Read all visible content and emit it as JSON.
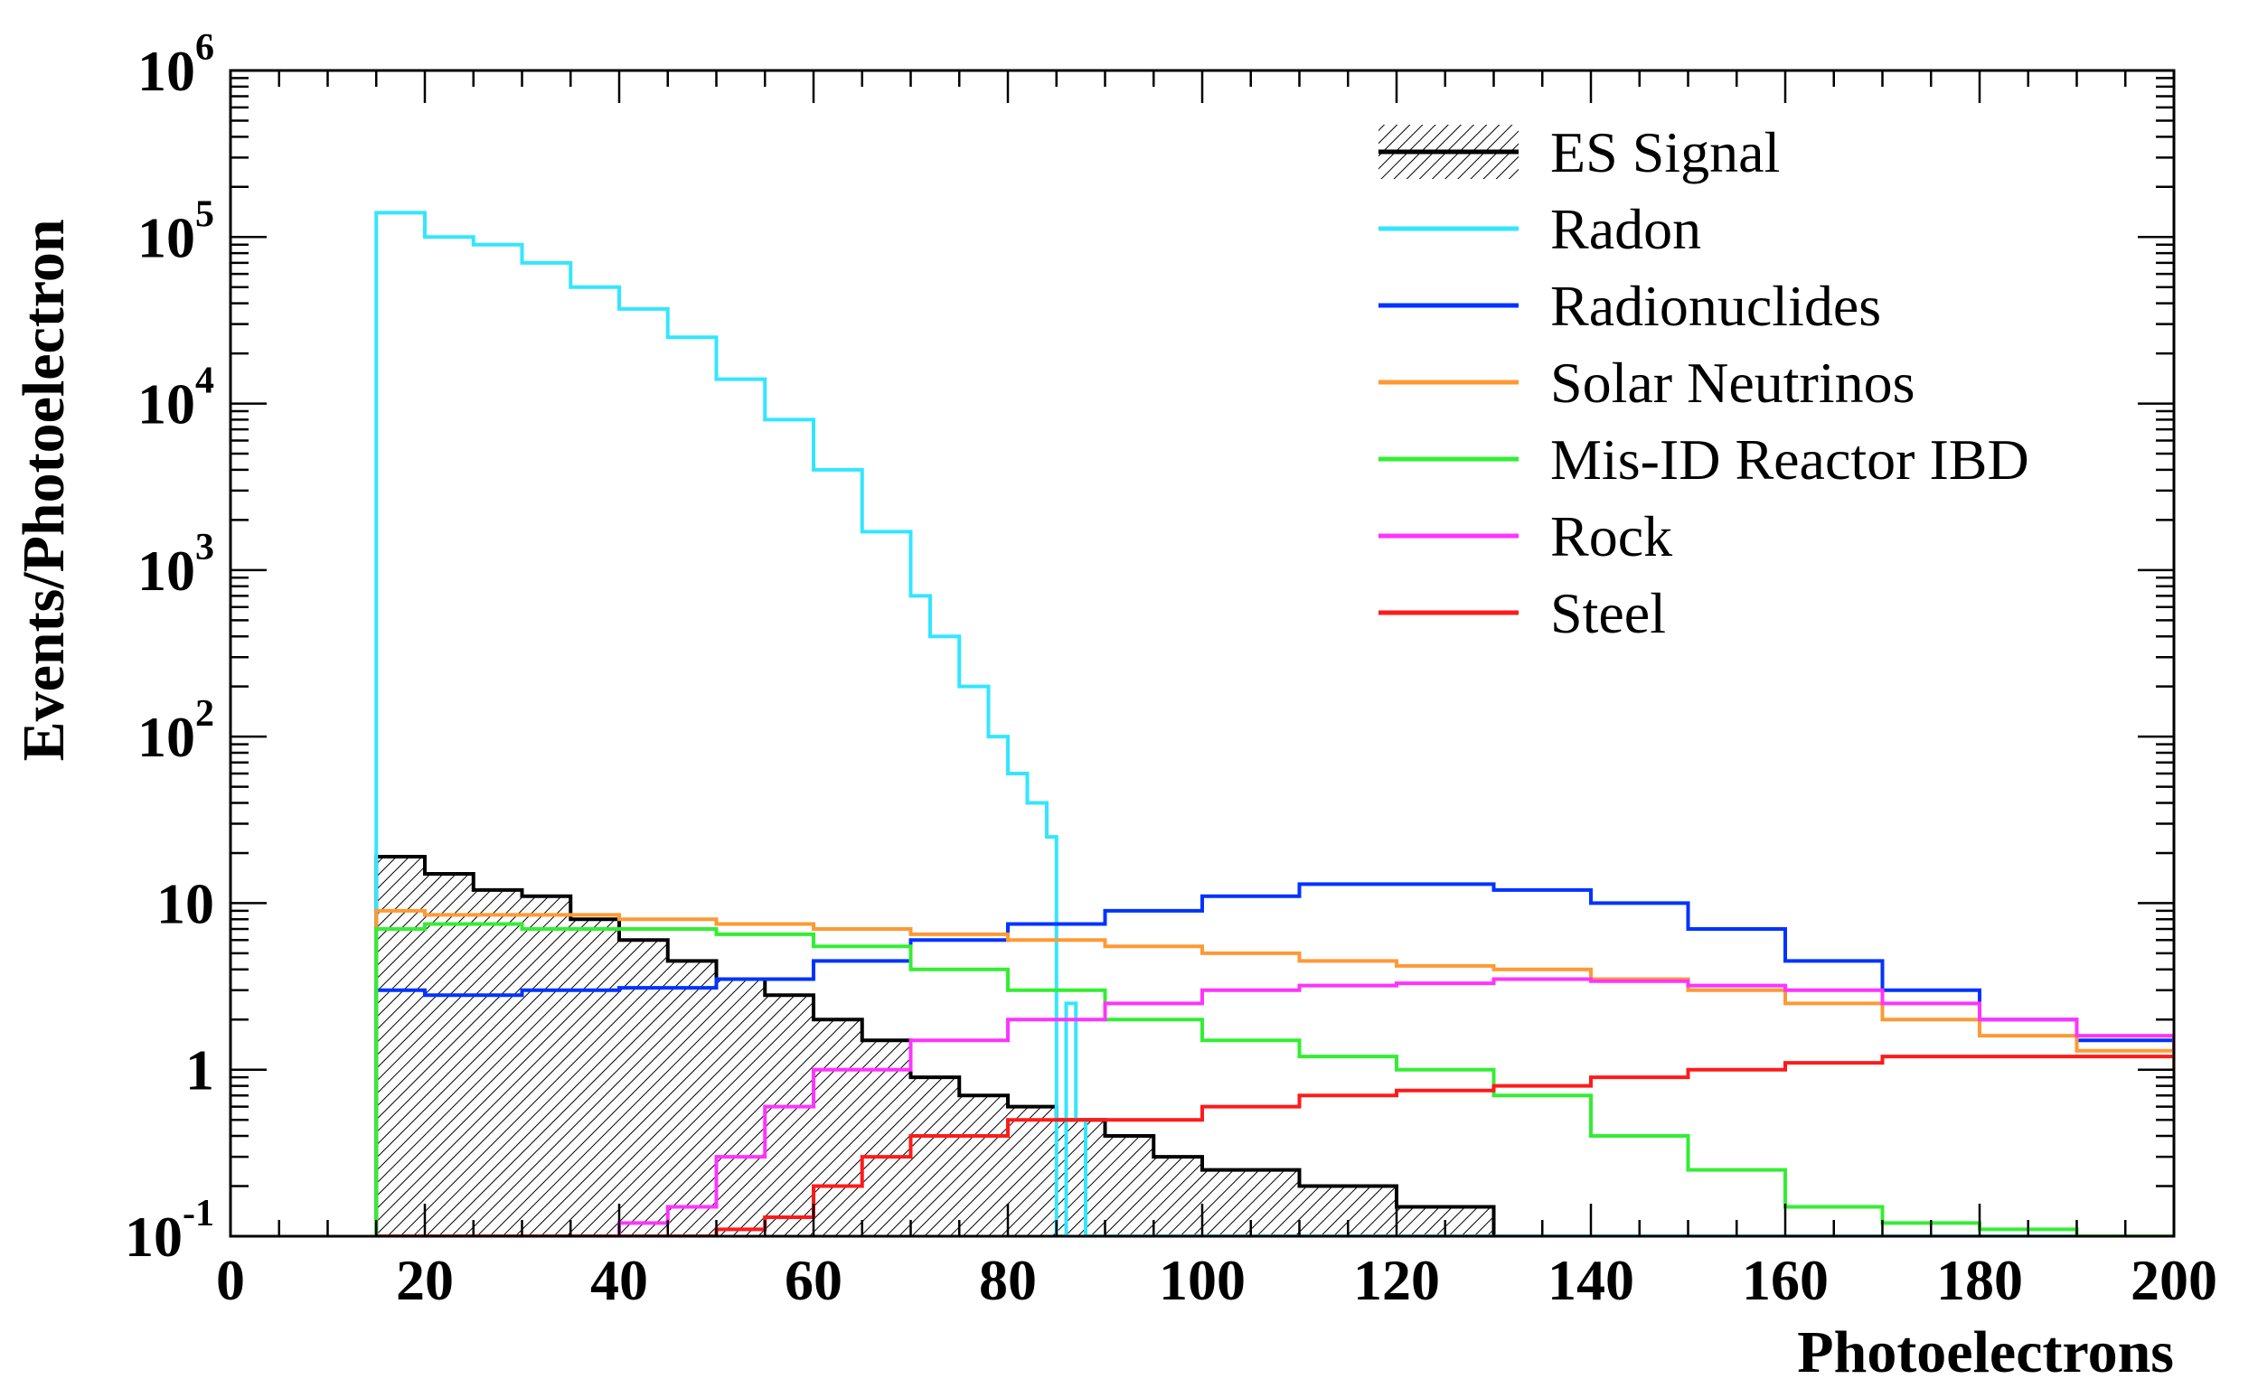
{
  "chart_data": {
    "type": "line",
    "subtype": "step-histogram",
    "title": "",
    "xlabel": "Photoelectrons",
    "ylabel": "Events/Photoelectron",
    "xlim": [
      0,
      200
    ],
    "ylim": [
      0.1,
      1000000
    ],
    "yscale": "log",
    "x_ticks": [
      "0",
      "20",
      "40",
      "60",
      "80",
      "100",
      "120",
      "140",
      "160",
      "180",
      "200"
    ],
    "y_ticks": [
      {
        "value": 0.1,
        "base": "10",
        "exp": "-1"
      },
      {
        "value": 1,
        "base": "1",
        "exp": ""
      },
      {
        "value": 10,
        "base": "10",
        "exp": ""
      },
      {
        "value": 100,
        "base": "10",
        "exp": "2"
      },
      {
        "value": 1000,
        "base": "10",
        "exp": "3"
      },
      {
        "value": 10000,
        "base": "10",
        "exp": "4"
      },
      {
        "value": 100000,
        "base": "10",
        "exp": "5"
      },
      {
        "value": 1000000,
        "base": "10",
        "exp": "6"
      }
    ],
    "grid": false,
    "legend_position": "top-right",
    "series": [
      {
        "name": "ES Signal",
        "color": "#000000",
        "hatched": true,
        "x": [
          15,
          20,
          25,
          30,
          35,
          40,
          45,
          50,
          55,
          60,
          65,
          70,
          75,
          80,
          85,
          90,
          95,
          100,
          110,
          120,
          130
        ],
        "y": [
          19,
          15,
          12,
          11,
          8,
          6,
          4.5,
          3.5,
          2.8,
          2,
          1.5,
          0.9,
          0.7,
          0.6,
          0.5,
          0.4,
          0.3,
          0.25,
          0.2,
          0.15,
          0.1
        ]
      },
      {
        "name": "Radon",
        "color": "#33e6ff",
        "x": [
          15,
          20,
          25,
          30,
          35,
          40,
          45,
          50,
          55,
          60,
          65,
          70,
          72,
          75,
          78,
          80,
          82,
          84,
          85,
          86,
          87,
          88,
          200
        ],
        "y": [
          140000,
          100000,
          90000,
          70000,
          50000,
          37000,
          25000,
          14000,
          8000,
          4000,
          1700,
          700,
          400,
          200,
          100,
          60,
          40,
          25,
          0.1,
          2.5,
          0.5,
          0.1,
          0.1
        ]
      },
      {
        "name": "Radionuclides",
        "color": "#0033ff",
        "x": [
          15,
          20,
          30,
          40,
          50,
          60,
          70,
          80,
          90,
          100,
          110,
          120,
          130,
          140,
          150,
          160,
          170,
          180,
          190,
          200
        ],
        "y": [
          3,
          2.8,
          3,
          3.1,
          3.5,
          4.5,
          6,
          7.5,
          9,
          11,
          13,
          13,
          12,
          10,
          7,
          4.5,
          3,
          2,
          1.5,
          1
        ]
      },
      {
        "name": "Solar Neutrinos",
        "color": "#ff9933",
        "x": [
          15,
          20,
          30,
          40,
          50,
          60,
          70,
          80,
          90,
          100,
          110,
          120,
          130,
          140,
          150,
          160,
          170,
          180,
          190,
          200
        ],
        "y": [
          9,
          8.5,
          8.5,
          8,
          7.5,
          7,
          6.5,
          6,
          5.5,
          5,
          4.5,
          4.2,
          4,
          3.5,
          3,
          2.5,
          2,
          1.6,
          1.3,
          1
        ]
      },
      {
        "name": "Mis-ID Reactor IBD",
        "color": "#33ee33",
        "x": [
          15,
          20,
          30,
          40,
          50,
          60,
          70,
          80,
          90,
          100,
          110,
          120,
          130,
          140,
          150,
          160,
          170,
          180,
          190,
          200
        ],
        "y": [
          7,
          7.5,
          7,
          7,
          6.5,
          5.5,
          4,
          3,
          2,
          1.5,
          1.2,
          1,
          0.7,
          0.4,
          0.25,
          0.15,
          0.12,
          0.11,
          0.1,
          0.1
        ]
      },
      {
        "name": "Rock",
        "color": "#ff33ff",
        "x": [
          15,
          20,
          30,
          40,
          45,
          50,
          55,
          60,
          70,
          80,
          90,
          100,
          110,
          120,
          130,
          140,
          150,
          160,
          170,
          180,
          190,
          200
        ],
        "y": [
          0.1,
          0.1,
          0.1,
          0.12,
          0.15,
          0.3,
          0.6,
          1,
          1.5,
          2,
          2.5,
          3,
          3.2,
          3.3,
          3.5,
          3.4,
          3.2,
          3,
          2.5,
          2,
          1.6,
          1.3
        ]
      },
      {
        "name": "Steel",
        "color": "#ff1a1a",
        "x": [
          15,
          20,
          30,
          40,
          50,
          55,
          60,
          65,
          70,
          80,
          90,
          100,
          110,
          120,
          130,
          140,
          150,
          160,
          170,
          180,
          190,
          200
        ],
        "y": [
          0.1,
          0.1,
          0.1,
          0.1,
          0.11,
          0.13,
          0.2,
          0.3,
          0.4,
          0.5,
          0.5,
          0.6,
          0.7,
          0.75,
          0.8,
          0.9,
          1,
          1.1,
          1.2,
          1.2,
          1.2,
          1.2
        ]
      }
    ]
  }
}
